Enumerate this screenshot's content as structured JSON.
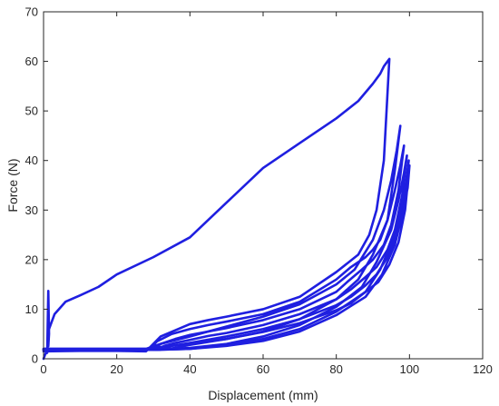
{
  "chart_data": {
    "type": "line",
    "title": "",
    "xlabel": "Displacement (mm)",
    "ylabel": "Force (N)",
    "xlim": [
      0,
      120
    ],
    "ylim": [
      0,
      70
    ],
    "xticks": [
      0,
      20,
      40,
      60,
      80,
      100,
      120
    ],
    "yticks": [
      0,
      10,
      20,
      30,
      40,
      50,
      60,
      70
    ],
    "x_tick_labels": [
      "0",
      "20",
      "40",
      "60",
      "80",
      "100",
      "120"
    ],
    "y_tick_labels": [
      "0",
      "10",
      "20",
      "30",
      "40",
      "50",
      "60",
      "70"
    ],
    "grid": false,
    "legend": "none",
    "line_color": "#1f1fe0",
    "series": [
      {
        "x": [
          0,
          0.5,
          1,
          1.3,
          1.5,
          1.3,
          1.5,
          3,
          6,
          10,
          15,
          20,
          30,
          40,
          50,
          60,
          70,
          80,
          86,
          90,
          92,
          93,
          94,
          94.5,
          93,
          91,
          89,
          86,
          80,
          70,
          60,
          50,
          45,
          40,
          32,
          28,
          20,
          10,
          0
        ],
        "y": [
          0,
          1,
          1.2,
          13.7,
          5,
          2.5,
          6,
          9,
          11.5,
          12.8,
          14.5,
          17,
          20.5,
          24.5,
          31.5,
          38.5,
          43.5,
          48.5,
          52,
          55.5,
          57.5,
          59,
          60,
          60.5,
          40,
          30,
          25,
          21,
          17.5,
          12.5,
          10,
          8.5,
          7.8,
          7,
          4.5,
          1.5,
          1.6,
          1.6,
          1.5
        ]
      },
      {
        "x": [
          0,
          10,
          20,
          28,
          32,
          40,
          50,
          60,
          70,
          80,
          85,
          90,
          93,
          95,
          96.5,
          97.5,
          96,
          94,
          92,
          90,
          88,
          84,
          80,
          70,
          60,
          50,
          45,
          40,
          35,
          31,
          29,
          20,
          10,
          0
        ],
        "y": [
          2,
          2,
          2,
          2,
          3,
          4.5,
          6.5,
          8.5,
          11,
          15,
          18,
          24,
          30,
          36,
          42,
          47,
          38,
          28,
          24,
          22,
          20.5,
          18.5,
          16,
          11.5,
          9,
          7.5,
          6.8,
          6,
          5,
          3.5,
          2,
          2,
          2,
          2
        ]
      },
      {
        "x": [
          0,
          10,
          20,
          29,
          33,
          40,
          50,
          60,
          70,
          80,
          86,
          90,
          94,
          96,
          97.5,
          98.5,
          97,
          95,
          93,
          90,
          87,
          83,
          80,
          70,
          60,
          50,
          45,
          40,
          36,
          32,
          30,
          20,
          10,
          0
        ],
        "y": [
          2,
          2,
          2,
          2,
          2.5,
          3,
          4,
          5.5,
          8,
          12,
          16,
          21,
          28,
          34,
          39,
          43,
          34,
          27,
          23,
          20,
          18,
          15.5,
          13.5,
          10,
          7.8,
          6.2,
          5.5,
          4.8,
          4,
          3,
          2,
          2,
          2,
          2
        ]
      },
      {
        "x": [
          0,
          10,
          20,
          30,
          35,
          40,
          50,
          60,
          70,
          80,
          87,
          91,
          95,
          97,
          98.5,
          99.3,
          98,
          96,
          94,
          91,
          88,
          84,
          80,
          70,
          60,
          50,
          45,
          40,
          36,
          33,
          31,
          20,
          10,
          0
        ],
        "y": [
          1.8,
          1.8,
          1.8,
          1.8,
          2,
          2.2,
          3,
          4.5,
          6.8,
          10.5,
          14.5,
          19.5,
          26,
          32,
          37.5,
          41,
          33,
          26,
          22,
          18.5,
          16.5,
          14,
          12,
          9,
          6.8,
          5.2,
          4.6,
          3.8,
          3.2,
          2.6,
          1.8,
          1.8,
          1.8,
          1.8
        ]
      },
      {
        "x": [
          0,
          10,
          20,
          30,
          40,
          50,
          60,
          70,
          80,
          88,
          92,
          95.5,
          97.5,
          99,
          99.8,
          98.5,
          96.5,
          94,
          91,
          88,
          84,
          80,
          70,
          60,
          50,
          40,
          35,
          32,
          20,
          10,
          0
        ],
        "y": [
          1.8,
          1.8,
          1.8,
          1.8,
          2,
          2.8,
          4,
          6,
          9.5,
          13.5,
          18,
          24,
          30,
          35.5,
          40,
          32,
          25,
          20.5,
          17,
          14.8,
          12.5,
          10.8,
          8,
          6,
          4.5,
          3.2,
          2.6,
          1.8,
          1.8,
          1.8,
          1.8
        ]
      },
      {
        "x": [
          0,
          10,
          20,
          30,
          40,
          50,
          60,
          70,
          80,
          88,
          92.5,
          96,
          98,
          99.5,
          100,
          98.8,
          97,
          94.5,
          91.5,
          88,
          84,
          80,
          70,
          60,
          50,
          40,
          33,
          20,
          10,
          0
        ],
        "y": [
          1.8,
          1.8,
          1.8,
          1.8,
          2,
          2.6,
          3.6,
          5.5,
          8.8,
          12.5,
          17,
          23,
          29,
          34.5,
          39,
          30,
          23.5,
          19,
          15.5,
          13.5,
          11.2,
          9.8,
          7.2,
          5.4,
          4,
          2.8,
          1.8,
          1.8,
          1.8,
          1.8
        ]
      }
    ]
  }
}
